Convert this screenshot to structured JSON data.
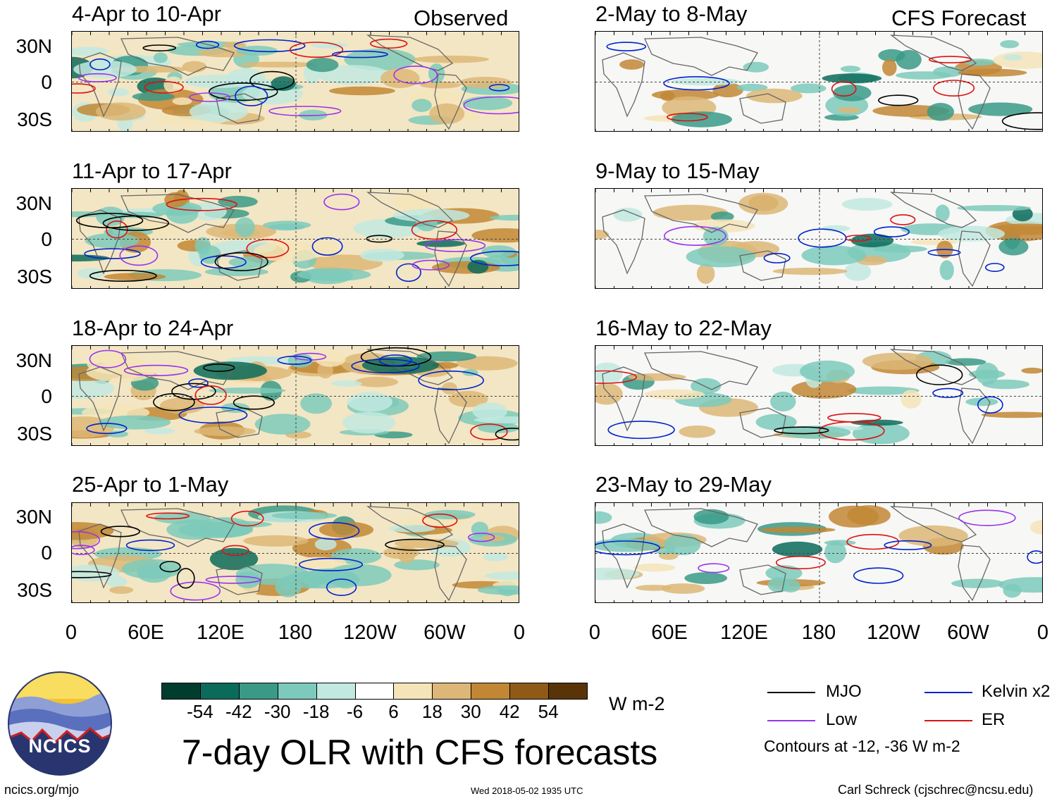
{
  "title": "7-day OLR with CFS forecasts",
  "columns": {
    "left": "Observed",
    "right": "CFS Forecast"
  },
  "panels_left": [
    "4-Apr to 10-Apr",
    "11-Apr to 17-Apr",
    "18-Apr to 24-Apr",
    "25-Apr to 1-May"
  ],
  "panels_right": [
    "2-May to 8-May",
    "9-May to 15-May",
    "16-May to 22-May",
    "23-May to 29-May"
  ],
  "lat_labels": [
    "30N",
    "0",
    "30S"
  ],
  "lon_labels": [
    "0",
    "60E",
    "120E",
    "180",
    "120W",
    "60W",
    "0"
  ],
  "colorbar": {
    "unit": "W m-2",
    "ticks": [
      "-54",
      "-42",
      "-30",
      "-18",
      "-6",
      "6",
      "18",
      "30",
      "42",
      "54"
    ],
    "colors": [
      "#003d2e",
      "#0b6b5a",
      "#3a9a87",
      "#7ccabb",
      "#c2e9e0",
      "#ffffff",
      "#f5e4b8",
      "#ddb777",
      "#c28735",
      "#8f5a18",
      "#5a3409"
    ]
  },
  "legend": {
    "items": [
      {
        "label": "MJO",
        "color": "#000000"
      },
      {
        "label": "Kelvin x2",
        "color": "#0022cc"
      },
      {
        "label": "Low",
        "color": "#9933ee"
      },
      {
        "label": "ER",
        "color": "#dd1111"
      }
    ],
    "note": "Contours at -12, -36 W m-2"
  },
  "logo": {
    "text": "NCICS"
  },
  "footer": {
    "url": "ncics.org/mjo",
    "timestamp": "Wed 2018-05-02 1935 UTC",
    "credit": "Carl Schreck (cjschrec@ncsu.edu)"
  }
}
